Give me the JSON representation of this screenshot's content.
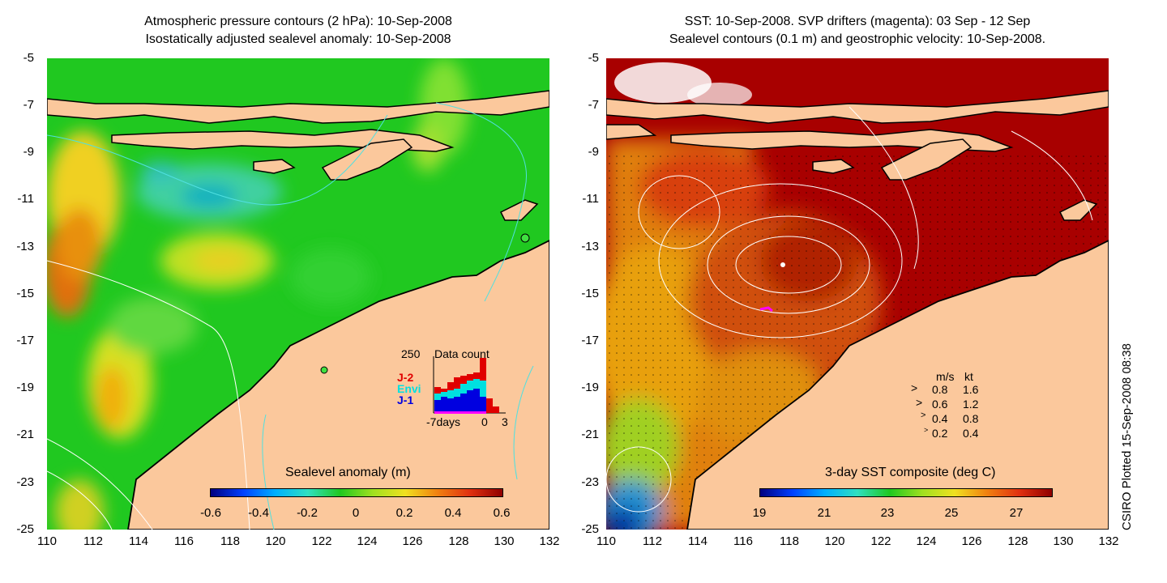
{
  "left_panel": {
    "title_line1": "Atmospheric pressure contours (2 hPa): 10-Sep-2008",
    "title_line2": "Isostatically adjusted sealevel anomaly: 10-Sep-2008",
    "colorbar_title": "Sealevel anomaly (m)",
    "colorbar_ticks": [
      "-0.6",
      "-0.4",
      "-0.2",
      "0",
      "0.2",
      "0.4",
      "0.6"
    ],
    "inset": {
      "top_value": "250",
      "title": "Data count",
      "legend": [
        {
          "label": "J-2",
          "color": "#e00000"
        },
        {
          "label": "Envi",
          "color": "#00e0e0"
        },
        {
          "label": "J-1",
          "color": "#0000e0"
        }
      ],
      "x_left": "-7days",
      "x_mid": "0",
      "x_right": "3"
    }
  },
  "right_panel": {
    "title_line1": "SST: 10-Sep-2008. SVP drifters (magenta): 03 Sep - 12 Sep",
    "title_line2": "Sealevel contours (0.1 m) and geostrophic velocity: 10-Sep-2008.",
    "colorbar_title": "3-day SST composite (deg C)",
    "colorbar_ticks": [
      "19",
      "21",
      "23",
      "25",
      "27"
    ],
    "velocity_legend": {
      "header_ms": "m/s",
      "header_kt": "kt",
      "rows": [
        {
          "ms": "0.8",
          "kt": "1.6"
        },
        {
          "ms": "0.6",
          "kt": "1.2"
        },
        {
          "ms": "0.4",
          "kt": "0.8"
        },
        {
          "ms": "0.2",
          "kt": "0.4"
        }
      ]
    }
  },
  "y_ticks": [
    "-5",
    "-7",
    "-9",
    "-11",
    "-13",
    "-15",
    "-17",
    "-19",
    "-21",
    "-23",
    "-25"
  ],
  "x_ticks": [
    "110",
    "112",
    "114",
    "116",
    "118",
    "120",
    "122",
    "124",
    "126",
    "128",
    "130",
    "132"
  ],
  "credit": "CSIRO Plotted 15-Sep-2008 08:38",
  "colors": {
    "land": "#fbc89c",
    "ocean_green": "#20c820",
    "sst_warm": "#a80000",
    "contour_cyan": "#50e0e0"
  }
}
